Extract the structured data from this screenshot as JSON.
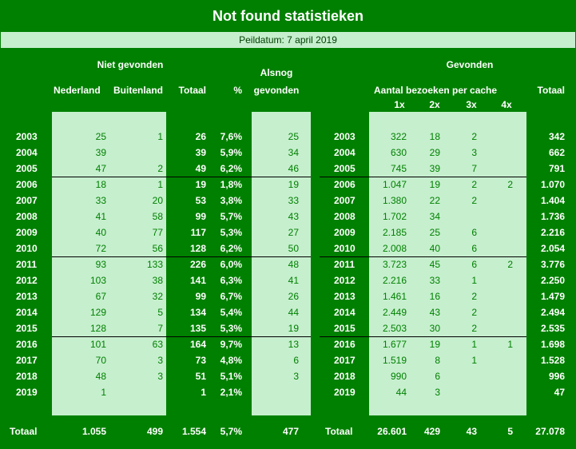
{
  "title": "Not found statistieken",
  "subtitle": "Peildatum: 7 april 2019",
  "left": {
    "group_header": "Niet gevonden",
    "headers": [
      "Nederland",
      "Buitenland",
      "Totaal",
      "%"
    ],
    "alsnog_header": [
      "Alsnog",
      "gevonden"
    ],
    "rows": [
      [
        "2003",
        "25",
        "1",
        "26",
        "7,6%",
        "25"
      ],
      [
        "2004",
        "39",
        null,
        "39",
        "5,9%",
        "34"
      ],
      [
        "2005",
        "47",
        "2",
        "49",
        "6,2%",
        "46"
      ],
      [
        "2006",
        "18",
        "1",
        "19",
        "1,8%",
        "19"
      ],
      [
        "2007",
        "33",
        "20",
        "53",
        "3,8%",
        "33"
      ],
      [
        "2008",
        "41",
        "58",
        "99",
        "5,7%",
        "43"
      ],
      [
        "2009",
        "40",
        "77",
        "117",
        "5,3%",
        "27"
      ],
      [
        "2010",
        "72",
        "56",
        "128",
        "6,2%",
        "50"
      ],
      [
        "2011",
        "93",
        "133",
        "226",
        "6,0%",
        "48"
      ],
      [
        "2012",
        "103",
        "38",
        "141",
        "6,3%",
        "41"
      ],
      [
        "2013",
        "67",
        "32",
        "99",
        "6,7%",
        "26"
      ],
      [
        "2014",
        "129",
        "5",
        "134",
        "5,4%",
        "44"
      ],
      [
        "2015",
        "128",
        "7",
        "135",
        "5,3%",
        "19"
      ],
      [
        "2016",
        "101",
        "63",
        "164",
        "9,7%",
        "13"
      ],
      [
        "2017",
        "70",
        "3",
        "73",
        "4,8%",
        "6"
      ],
      [
        "2018",
        "48",
        "3",
        "51",
        "5,1%",
        "3"
      ],
      [
        "2019",
        "1",
        null,
        "1",
        "2,1%",
        null
      ]
    ],
    "total": [
      "Totaal",
      "1.055",
      "499",
      "1.554",
      "5,7%",
      "477"
    ]
  },
  "right": {
    "group_header": "Gevonden",
    "subheader": "Aantal bezoeken per cache",
    "headers": [
      "1x",
      "2x",
      "3x",
      "4x"
    ],
    "total_header": "Totaal",
    "rows": [
      [
        "2003",
        "322",
        "18",
        "2",
        null,
        "342"
      ],
      [
        "2004",
        "630",
        "29",
        "3",
        null,
        "662"
      ],
      [
        "2005",
        "745",
        "39",
        "7",
        null,
        "791"
      ],
      [
        "2006",
        "1.047",
        "19",
        "2",
        "2",
        "1.070"
      ],
      [
        "2007",
        "1.380",
        "22",
        "2",
        null,
        "1.404"
      ],
      [
        "2008",
        "1.702",
        "34",
        null,
        null,
        "1.736"
      ],
      [
        "2009",
        "2.185",
        "25",
        "6",
        null,
        "2.216"
      ],
      [
        "2010",
        "2.008",
        "40",
        "6",
        null,
        "2.054"
      ],
      [
        "2011",
        "3.723",
        "45",
        "6",
        "2",
        "3.776"
      ],
      [
        "2012",
        "2.216",
        "33",
        "1",
        null,
        "2.250"
      ],
      [
        "2013",
        "1.461",
        "16",
        "2",
        null,
        "1.479"
      ],
      [
        "2014",
        "2.449",
        "43",
        "2",
        null,
        "2.494"
      ],
      [
        "2015",
        "2.503",
        "30",
        "2",
        null,
        "2.535"
      ],
      [
        "2016",
        "1.677",
        "19",
        "1",
        "1",
        "1.698"
      ],
      [
        "2017",
        "1.519",
        "8",
        "1",
        null,
        "1.528"
      ],
      [
        "2018",
        "990",
        "6",
        null,
        null,
        "996"
      ],
      [
        "2019",
        "44",
        "3",
        null,
        null,
        "47"
      ]
    ],
    "total": [
      "Totaal",
      "26.601",
      "429",
      "43",
      "5",
      "27.078"
    ]
  }
}
